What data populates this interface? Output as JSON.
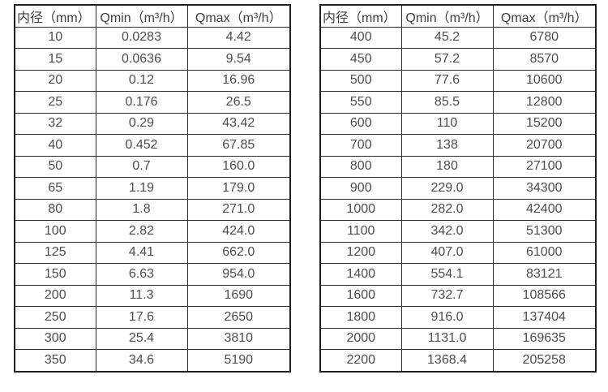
{
  "headers": [
    "内径（mm）",
    "Qmin（m³/h）",
    "Qmax（m³/h）"
  ],
  "tables": {
    "left": {
      "rows": [
        [
          "10",
          "0.0283",
          "4.42"
        ],
        [
          "15",
          "0.0636",
          "9.54"
        ],
        [
          "20",
          "0.12",
          "16.96"
        ],
        [
          "25",
          "0.176",
          "26.5"
        ],
        [
          "32",
          "0.29",
          "43.42"
        ],
        [
          "40",
          "0.452",
          "67.85"
        ],
        [
          "50",
          "0.7",
          "160.0"
        ],
        [
          "65",
          "1.19",
          "179.0"
        ],
        [
          "80",
          "1.8",
          "271.0"
        ],
        [
          "100",
          "2.82",
          "424.0"
        ],
        [
          "125",
          "4.41",
          "662.0"
        ],
        [
          "150",
          "6.63",
          "954.0"
        ],
        [
          "200",
          "11.3",
          "1690"
        ],
        [
          "250",
          "17.6",
          "2650"
        ],
        [
          "300",
          "25.4",
          "3810"
        ],
        [
          "350",
          "34.6",
          "5190"
        ]
      ]
    },
    "right": {
      "rows": [
        [
          "400",
          "45.2",
          "6780"
        ],
        [
          "450",
          "57.2",
          "8570"
        ],
        [
          "500",
          "77.6",
          "10600"
        ],
        [
          "550",
          "85.5",
          "12800"
        ],
        [
          "600",
          "110",
          "15200"
        ],
        [
          "700",
          "138",
          "20700"
        ],
        [
          "800",
          "180",
          "27100"
        ],
        [
          "900",
          "229.0",
          "34300"
        ],
        [
          "1000",
          "282.0",
          "42400"
        ],
        [
          "1100",
          "342.0",
          "51300"
        ],
        [
          "1200",
          "407.0",
          "61000"
        ],
        [
          "1400",
          "554.1",
          "83121"
        ],
        [
          "1600",
          "732.7",
          "108566"
        ],
        [
          "1800",
          "916.0",
          "137404"
        ],
        [
          "2000",
          "1131.0",
          "169635"
        ],
        [
          "2200",
          "1368.4",
          "205258"
        ]
      ]
    }
  },
  "colors": {
    "text_header": "#3f3f3f",
    "text_cell": "#4d4d4d",
    "border": "#2b2b2b",
    "background": "#ffffff"
  }
}
